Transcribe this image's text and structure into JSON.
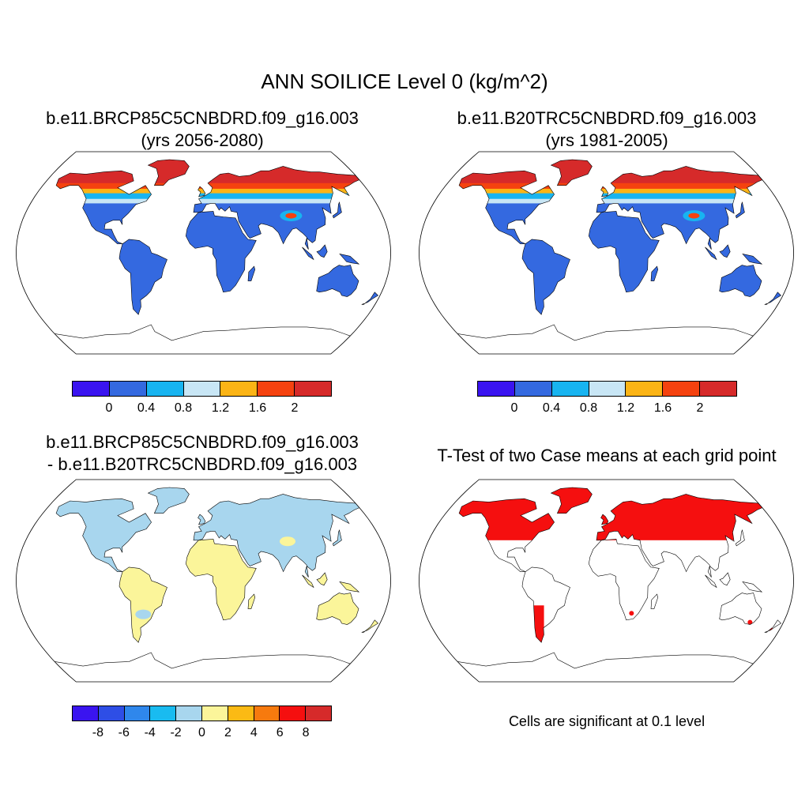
{
  "title": "ANN SOILICE Level 0 (kg/m^2)",
  "panels": [
    {
      "title_line1": "b.e11.BRCP85C5CNBDRD.f09_g16.003",
      "title_line2": "(yrs 2056-2080)"
    },
    {
      "title_line1": "b.e11.B20TRC5CNBDRD.f09_g16.003",
      "title_line2": "(yrs 1981-2005)"
    },
    {
      "title_line1": "b.e11.BRCP85C5CNBDRD.f09_g16.003",
      "title_line2": "- b.e11.B20TRC5CNBDRD.f09_g16.003"
    },
    {
      "title_line1": "T-Test of two Case means at each grid point",
      "title_line2": ""
    }
  ],
  "colorbars": {
    "abs": {
      "colors": [
        "#3a14f0",
        "#3469e0",
        "#18b4f0",
        "#c8e6f5",
        "#fbb416",
        "#f5420f",
        "#d62a2a"
      ],
      "ticks": [
        "0",
        "0.4",
        "0.8",
        "1.2",
        "1.6",
        "2"
      ]
    },
    "diff": {
      "colors": [
        "#3a14f0",
        "#2e4ee6",
        "#2f87ec",
        "#19bbf0",
        "#a8d6ee",
        "#fbf59a",
        "#fbba14",
        "#f77a0e",
        "#f50f0f",
        "#d62a2a"
      ],
      "ticks": [
        "-8",
        "-6",
        "-4",
        "-2",
        "0",
        "2",
        "4",
        "6",
        "8"
      ]
    }
  },
  "significance_note": "Cells are significant at 0.1 level",
  "colors": {
    "land_abs": "#3469e0",
    "land_diff_neg": "#a8d6ee",
    "land_diff_pos": "#fbf59a",
    "significant": "#f50f0f"
  }
}
